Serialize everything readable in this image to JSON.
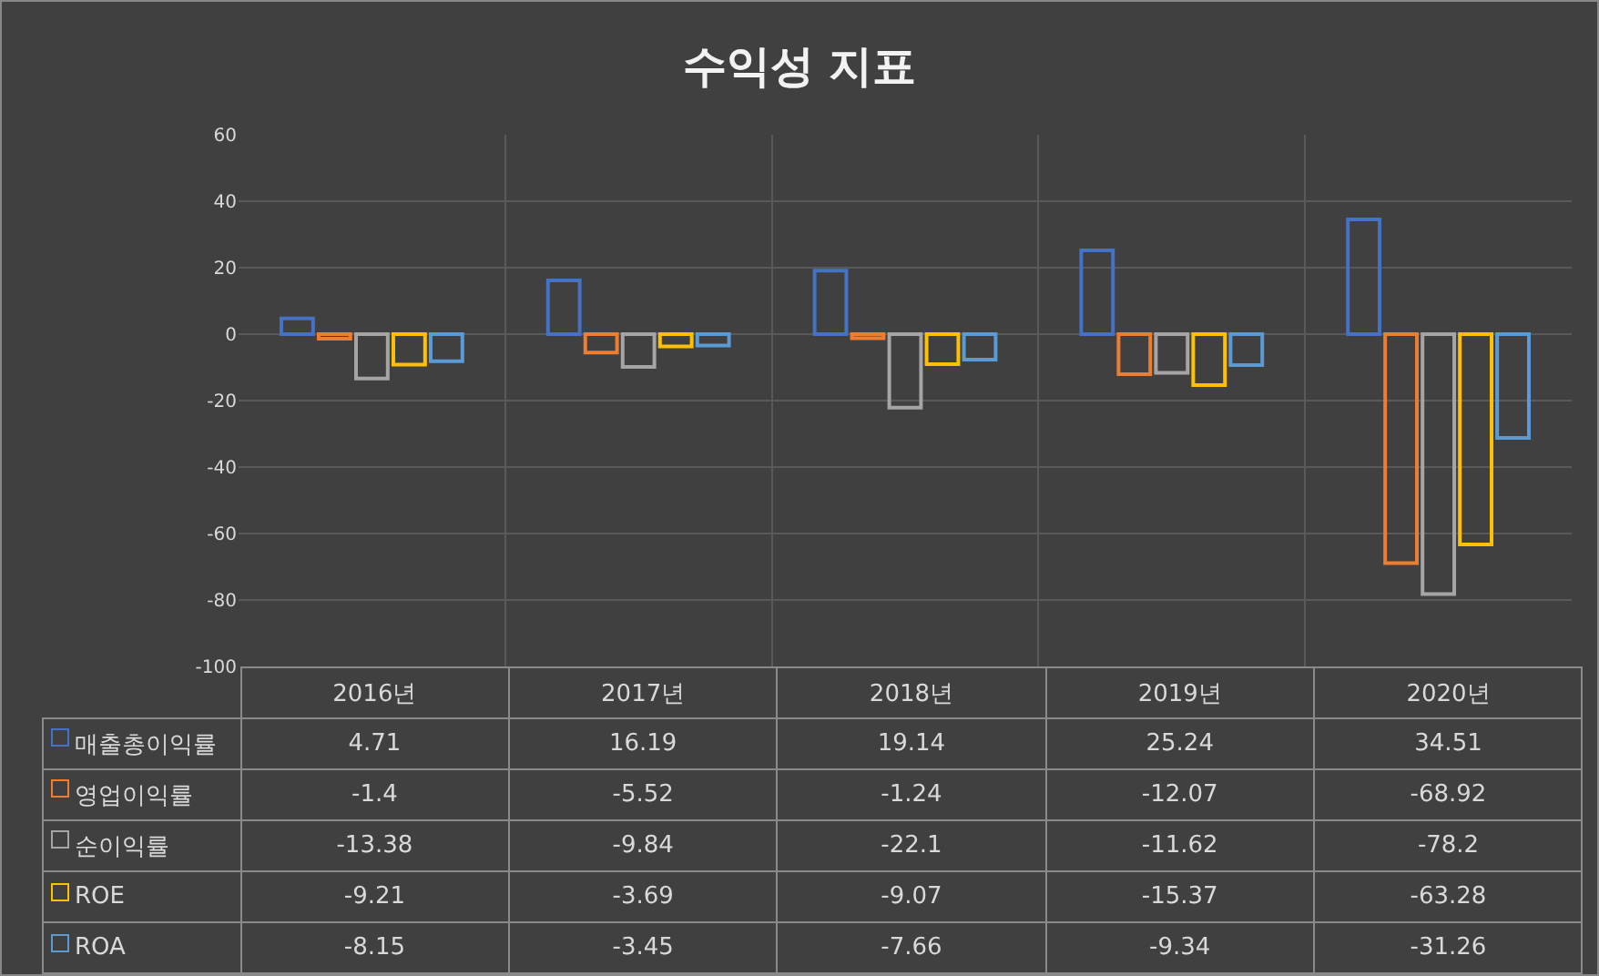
{
  "chart_data": {
    "type": "bar",
    "title": "수익성 지표",
    "categories": [
      "2016년",
      "2017년",
      "2018년",
      "2019년",
      "2020년"
    ],
    "series": [
      {
        "name": "매출총이익률",
        "color": "#4472c4",
        "values": [
          4.71,
          16.19,
          19.14,
          25.24,
          34.51
        ]
      },
      {
        "name": "영업이익률",
        "color": "#ed7d31",
        "values": [
          -1.4,
          -5.52,
          -1.24,
          -12.07,
          -68.92
        ]
      },
      {
        "name": "순이익률",
        "color": "#a5a5a5",
        "values": [
          -13.38,
          -9.84,
          -22.1,
          -11.62,
          -78.2
        ]
      },
      {
        "name": "ROE",
        "color": "#ffc000",
        "values": [
          -9.21,
          -3.69,
          -9.07,
          -15.37,
          -63.28
        ]
      },
      {
        "name": "ROA",
        "color": "#5b9bd5",
        "values": [
          -8.15,
          -3.45,
          -7.66,
          -9.34,
          -31.26
        ]
      }
    ],
    "ylim": [
      -100,
      60
    ],
    "yticks": [
      -100,
      -80,
      -60,
      -40,
      -20,
      0,
      20,
      40,
      60
    ],
    "grid": true,
    "data_labels": true,
    "legend": "bottom",
    "tick_labels": "y"
  }
}
